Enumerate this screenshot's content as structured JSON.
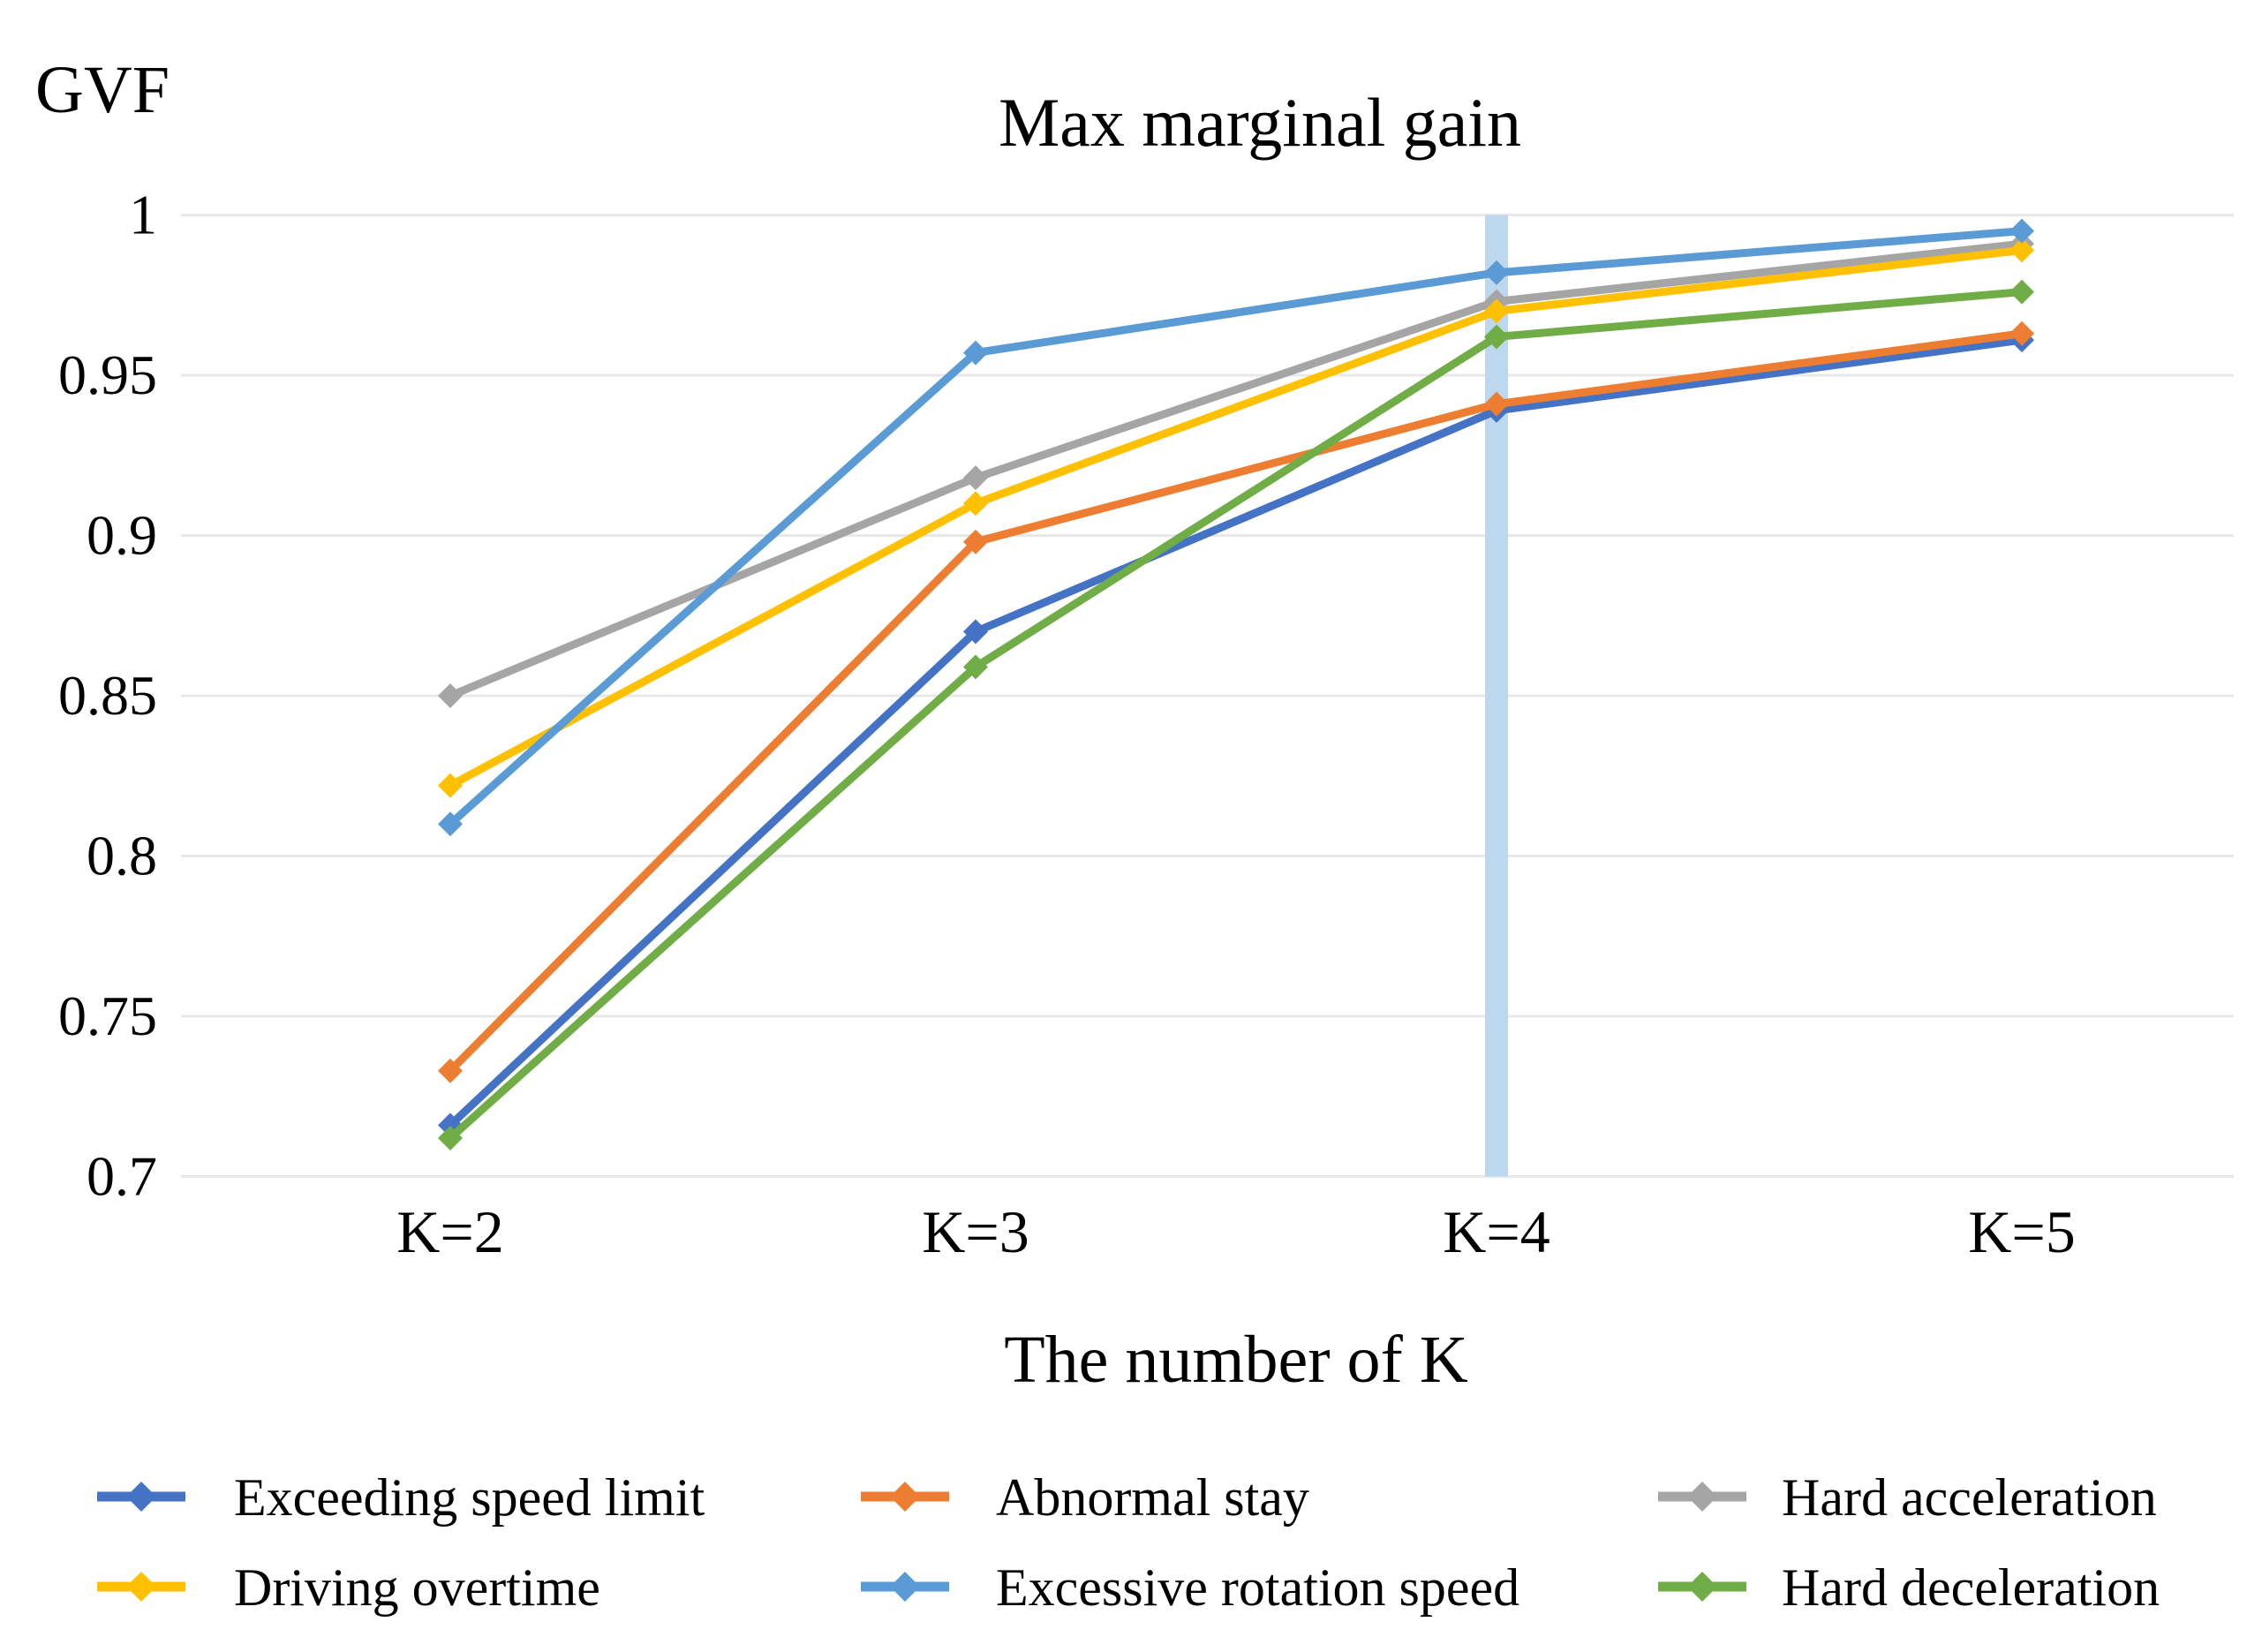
{
  "chart_data": {
    "type": "line",
    "title": "Max marginal gain",
    "y_axis_title": "GVF",
    "x_axis_title": "The number of K",
    "categories": [
      "K=2",
      "K=3",
      "K=4",
      "K=5"
    ],
    "y_ticks": [
      {
        "label": "1",
        "value": 1.0
      },
      {
        "label": "0.95",
        "value": 0.95
      },
      {
        "label": "0.9",
        "value": 0.9
      },
      {
        "label": "0.85",
        "value": 0.85
      },
      {
        "label": "0.8",
        "value": 0.8
      },
      {
        "label": "0.75",
        "value": 0.75
      },
      {
        "label": "0.7",
        "value": 0.7
      }
    ],
    "ylim": [
      0.7,
      1.0
    ],
    "grid": true,
    "legend_position": "bottom",
    "series": [
      {
        "name": "Exceeding speed limit",
        "color": "#4472C4",
        "values": [
          0.716,
          0.87,
          0.939,
          0.961
        ]
      },
      {
        "name": "Abnormal stay",
        "color": "#ED7D31",
        "values": [
          0.733,
          0.898,
          0.941,
          0.963
        ]
      },
      {
        "name": "Hard acceleration",
        "color": "#A5A5A5",
        "values": [
          0.85,
          0.918,
          0.973,
          0.991
        ]
      },
      {
        "name": "Driving overtime",
        "color": "#FFC000",
        "values": [
          0.822,
          0.91,
          0.97,
          0.989
        ]
      },
      {
        "name": "Excessive rotation speed",
        "color": "#5B9BD5",
        "values": [
          0.81,
          0.957,
          0.982,
          0.995
        ]
      },
      {
        "name": "Hard deceleration",
        "color": "#70AD47",
        "values": [
          0.712,
          0.859,
          0.962,
          0.976
        ]
      }
    ],
    "annotation_bar": {
      "points_to_category": "K=4",
      "x_category_index": 2,
      "y_from": 0.7,
      "y_to": 1.0,
      "color": "#BDD7EE"
    },
    "gridline_color": "#E8E8E8"
  }
}
